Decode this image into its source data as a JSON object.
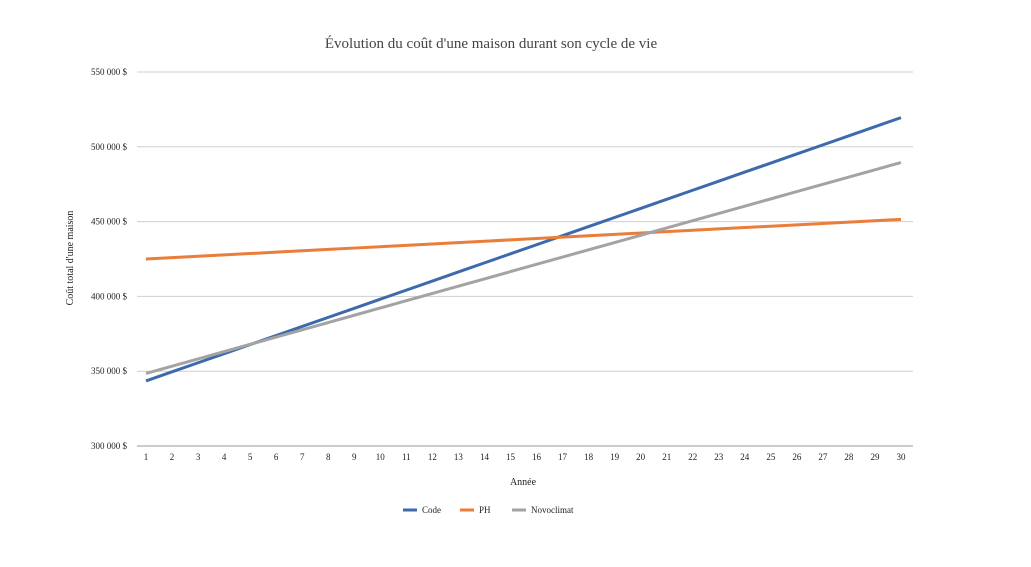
{
  "chart_data": {
    "type": "line",
    "title": "Évolution du coût d'une maison durant son cycle de vie",
    "xlabel": "Année",
    "ylabel": "Coût total d'une maison",
    "x": [
      1,
      2,
      3,
      4,
      5,
      6,
      7,
      8,
      9,
      10,
      11,
      12,
      13,
      14,
      15,
      16,
      17,
      18,
      19,
      20,
      21,
      22,
      23,
      24,
      25,
      26,
      27,
      28,
      29,
      30
    ],
    "ylim": [
      300000,
      550000
    ],
    "yticks": [
      300000,
      350000,
      400000,
      450000,
      500000,
      550000
    ],
    "ytick_labels": [
      "300 000 $",
      "350 000 $",
      "400 000 $",
      "450 000 $",
      "500 000 $",
      "550 000 $"
    ],
    "grid": true,
    "legend_position": "bottom",
    "series": [
      {
        "name": "Code",
        "color": "#3d6aac",
        "start": 343500,
        "end": 519500
      },
      {
        "name": "PH",
        "color": "#ea7d39",
        "start": 425000,
        "end": 451500
      },
      {
        "name": "Novoclimat",
        "color": "#a3a3a3",
        "start": 348500,
        "end": 489500
      }
    ]
  }
}
